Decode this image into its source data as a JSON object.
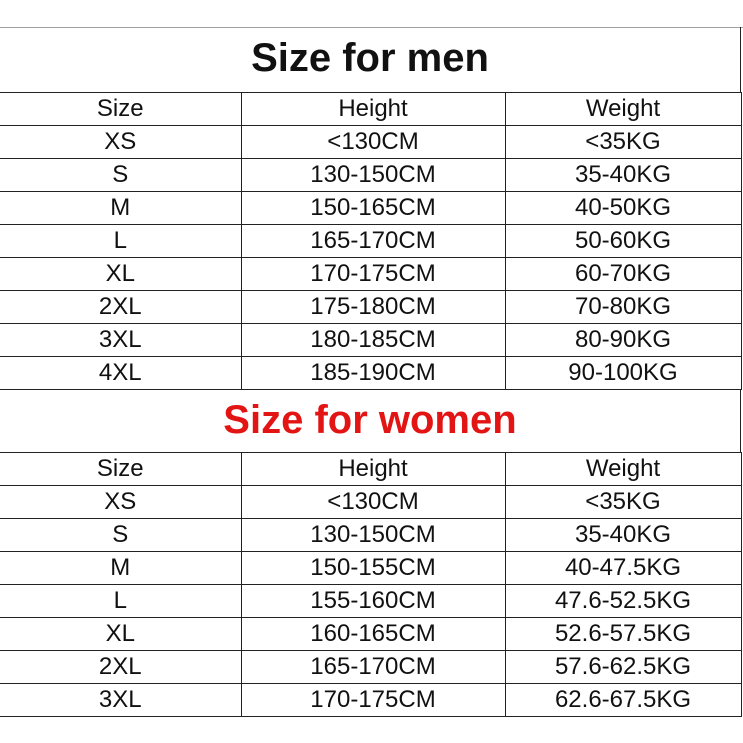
{
  "men": {
    "title": "Size for men",
    "title_color": "#111111",
    "headers": [
      "Size",
      "Height",
      "Weight"
    ],
    "rows": [
      [
        "XS",
        "<130CM",
        "<35KG"
      ],
      [
        "S",
        "130-150CM",
        "35-40KG"
      ],
      [
        "M",
        "150-165CM",
        "40-50KG"
      ],
      [
        "L",
        "165-170CM",
        "50-60KG"
      ],
      [
        "XL",
        "170-175CM",
        "60-70KG"
      ],
      [
        "2XL",
        "175-180CM",
        "70-80KG"
      ],
      [
        "3XL",
        "180-185CM",
        "80-90KG"
      ],
      [
        "4XL",
        "185-190CM",
        "90-100KG"
      ]
    ]
  },
  "women": {
    "title": "Size for women",
    "title_color": "#e31414",
    "headers": [
      "Size",
      "Height",
      "Weight"
    ],
    "rows": [
      [
        "XS",
        "<130CM",
        "<35KG"
      ],
      [
        "S",
        "130-150CM",
        "35-40KG"
      ],
      [
        "M",
        "150-155CM",
        "40-47.5KG"
      ],
      [
        "L",
        "155-160CM",
        "47.6-52.5KG"
      ],
      [
        "XL",
        "160-165CM",
        "52.6-57.5KG"
      ],
      [
        "2XL",
        "165-170CM",
        "57.6-62.5KG"
      ],
      [
        "3XL",
        "170-175CM",
        "62.6-67.5KG"
      ]
    ]
  }
}
